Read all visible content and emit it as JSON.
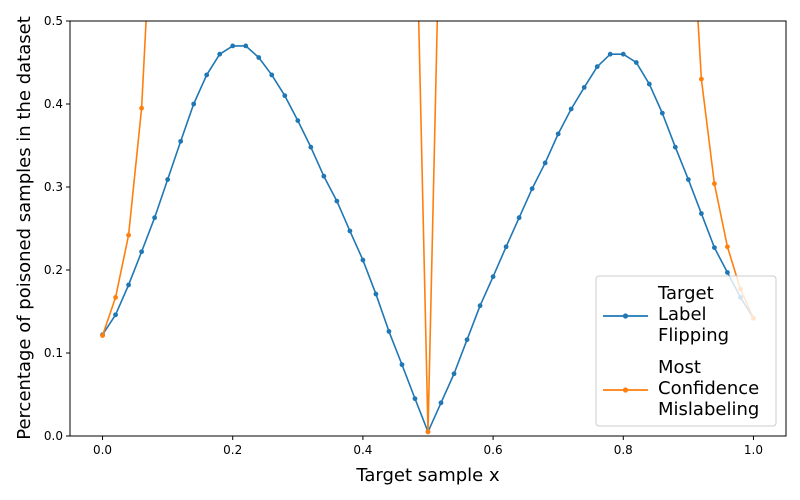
{
  "chart_data": {
    "type": "line",
    "title": "",
    "xlabel": "Target sample x",
    "ylabel": "Percentage of poisoned samples in the dataset",
    "xlim": [
      -0.05,
      1.05
    ],
    "ylim": [
      0.0,
      0.5
    ],
    "xticks": [
      "0.0",
      "0.2",
      "0.4",
      "0.6",
      "0.8",
      "1.0"
    ],
    "xtick_values": [
      0.0,
      0.2,
      0.4,
      0.6,
      0.8,
      1.0
    ],
    "yticks": [
      "0.0",
      "0.1",
      "0.2",
      "0.3",
      "0.4",
      "0.5"
    ],
    "ytick_values": [
      0.0,
      0.1,
      0.2,
      0.3,
      0.4,
      0.5
    ],
    "grid": false,
    "legend_position": "lower right",
    "series": [
      {
        "name": "Target Label Flipping",
        "legend_lines": [
          "Target",
          "Label",
          "Flipping"
        ],
        "color": "#1f77b4",
        "marker": "circle",
        "x": [
          0.0,
          0.02,
          0.04,
          0.06,
          0.08,
          0.1,
          0.12,
          0.14,
          0.16,
          0.18,
          0.2,
          0.22,
          0.24,
          0.26,
          0.28,
          0.3,
          0.32,
          0.34,
          0.36,
          0.38,
          0.4,
          0.42,
          0.44,
          0.46,
          0.48,
          0.5,
          0.52,
          0.54,
          0.56,
          0.58,
          0.6,
          0.62,
          0.64,
          0.66,
          0.68,
          0.7,
          0.72,
          0.74,
          0.76,
          0.78,
          0.8,
          0.82,
          0.84,
          0.86,
          0.88,
          0.9,
          0.92,
          0.94,
          0.96,
          0.98,
          1.0
        ],
        "y": [
          0.122,
          0.146,
          0.182,
          0.222,
          0.263,
          0.309,
          0.355,
          0.4,
          0.435,
          0.46,
          0.47,
          0.47,
          0.456,
          0.435,
          0.41,
          0.38,
          0.348,
          0.313,
          0.283,
          0.247,
          0.212,
          0.171,
          0.126,
          0.086,
          0.045,
          0.005,
          0.04,
          0.075,
          0.116,
          0.157,
          0.192,
          0.228,
          0.263,
          0.298,
          0.329,
          0.364,
          0.394,
          0.42,
          0.445,
          0.46,
          0.46,
          0.45,
          0.424,
          0.389,
          0.348,
          0.309,
          0.268,
          0.227,
          0.197,
          0.167,
          0.142
        ]
      },
      {
        "name": "Most Confidence Mislabeling",
        "legend_lines": [
          "Most",
          "Confidence",
          "Mislabeling"
        ],
        "color": "#ff7f0e",
        "marker": "circle",
        "x": [
          0.0,
          0.02,
          0.04,
          0.06,
          0.08,
          0.48,
          0.5,
          0.52,
          0.9,
          0.92,
          0.94,
          0.96,
          0.98,
          1.0
        ],
        "y": [
          0.121,
          0.167,
          0.242,
          0.395,
          0.7,
          0.7,
          0.005,
          0.7,
          0.7,
          0.43,
          0.304,
          0.228,
          0.177,
          0.142
        ]
      }
    ]
  }
}
